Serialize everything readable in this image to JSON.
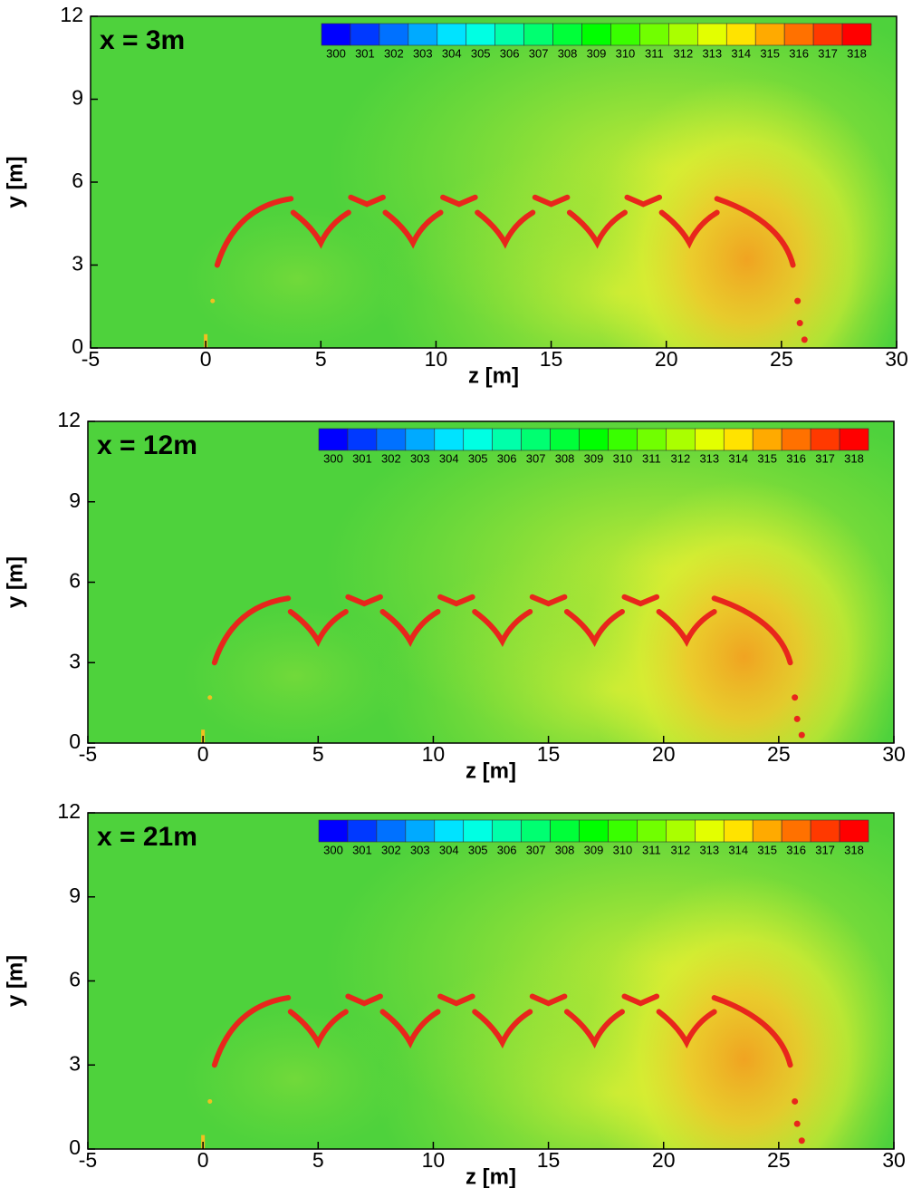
{
  "chart_data": [
    {
      "type": "contour",
      "title": "x = 3m",
      "xlabel": "z [m]",
      "ylabel": "y [m]",
      "xlim": [
        -5,
        30
      ],
      "ylim": [
        0,
        12
      ],
      "xticks": [
        -5,
        0,
        5,
        10,
        15,
        20,
        25,
        30
      ],
      "yticks": [
        0,
        3,
        6,
        9,
        12
      ],
      "colorbar": {
        "ticks": [
          300,
          301,
          302,
          303,
          304,
          305,
          306,
          307,
          308,
          309,
          310,
          311,
          312,
          313,
          314,
          315,
          316,
          317,
          318
        ],
        "colors": [
          "#0000ff",
          "#00ffff",
          "#00ff00",
          "#ffff00",
          "#ff0000"
        ]
      }
    },
    {
      "type": "contour",
      "title": "x = 12m",
      "xlabel": "z [m]",
      "ylabel": "y [m]",
      "xlim": [
        -5,
        30
      ],
      "ylim": [
        0,
        12
      ],
      "xticks": [
        -5,
        0,
        5,
        10,
        15,
        20,
        25,
        30
      ],
      "yticks": [
        0,
        3,
        6,
        9,
        12
      ],
      "colorbar": {
        "ticks": [
          300,
          301,
          302,
          303,
          304,
          305,
          306,
          307,
          308,
          309,
          310,
          311,
          312,
          313,
          314,
          315,
          316,
          317,
          318
        ],
        "colors": [
          "#0000ff",
          "#00ffff",
          "#00ff00",
          "#ffff00",
          "#ff0000"
        ]
      }
    },
    {
      "type": "contour",
      "title": "x = 21m",
      "xlabel": "z [m]",
      "ylabel": "y [m]",
      "xlim": [
        -5,
        30
      ],
      "ylim": [
        0,
        12
      ],
      "xticks": [
        -5,
        0,
        5,
        10,
        15,
        20,
        25,
        30
      ],
      "yticks": [
        0,
        3,
        6,
        9,
        12
      ],
      "colorbar": {
        "ticks": [
          300,
          301,
          302,
          303,
          304,
          305,
          306,
          307,
          308,
          309,
          310,
          311,
          312,
          313,
          314,
          315,
          316,
          317,
          318
        ],
        "colors": [
          "#0000ff",
          "#00ffff",
          "#00ff00",
          "#ffff00",
          "#ff0000"
        ]
      }
    }
  ]
}
